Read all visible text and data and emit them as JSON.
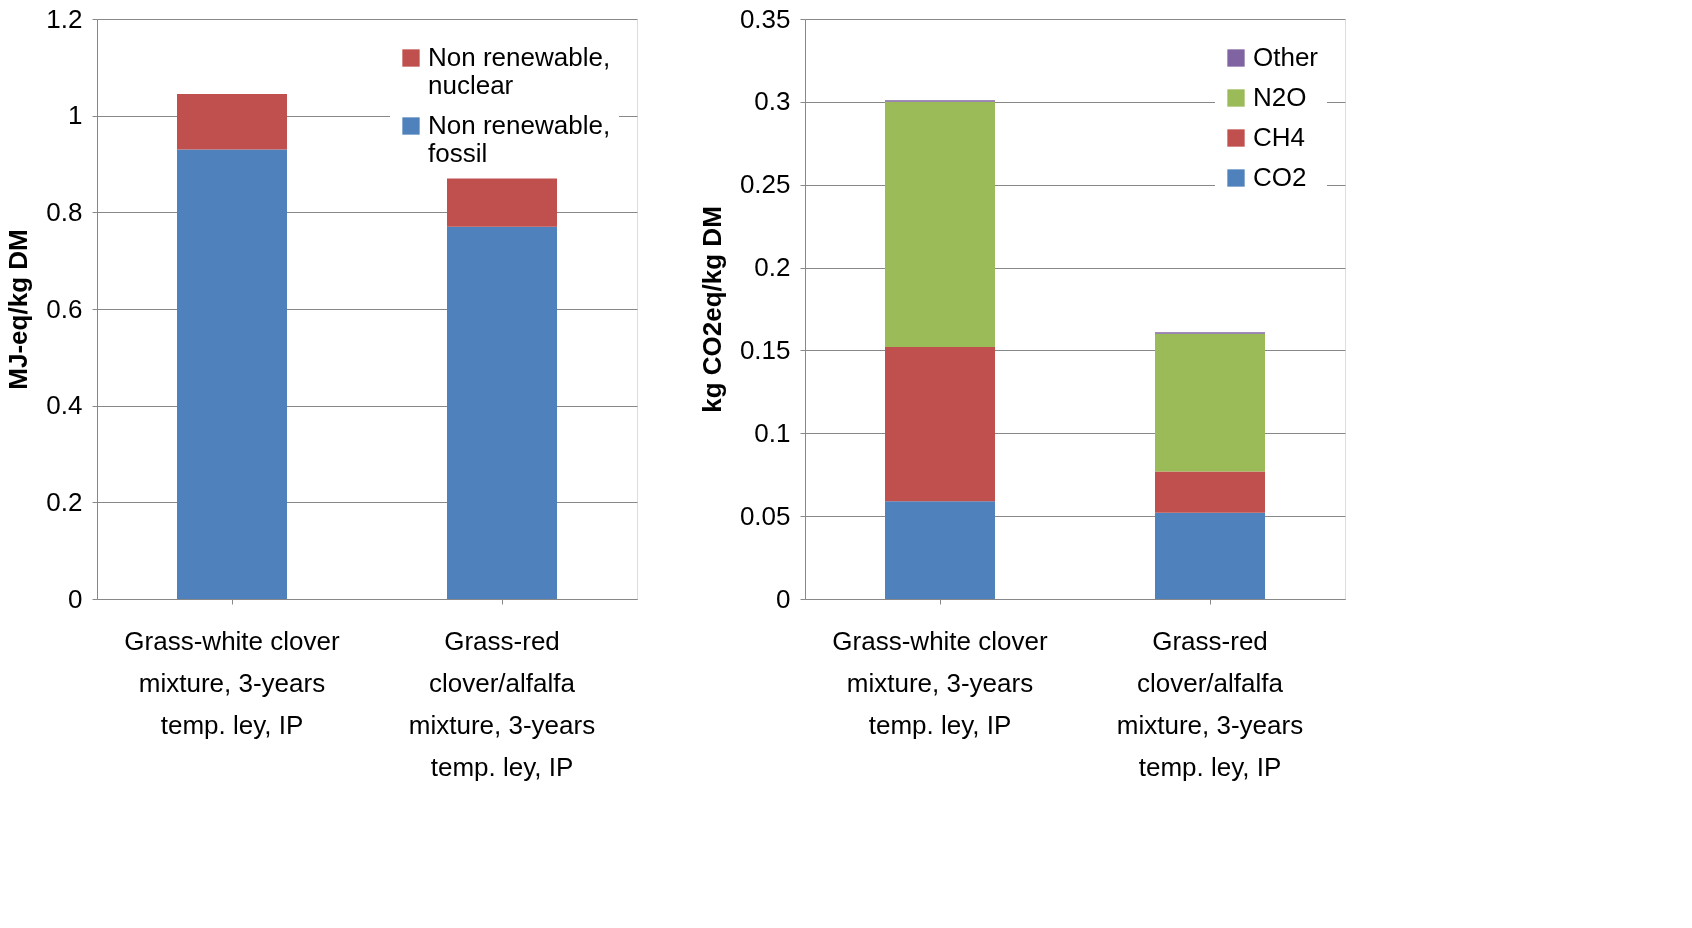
{
  "chart_data": [
    {
      "type": "bar",
      "stacked": true,
      "ylabel": "MJ-eq/kg DM",
      "categories": [
        "Grass-white clover mixture, 3-years temp. ley, IP",
        "Grass-red clover/alfalfa mixture, 3-years temp. ley, IP"
      ],
      "series": [
        {
          "name": "Non renewable, fossil",
          "color": "#4f81bd",
          "values": [
            0.93,
            0.77
          ]
        },
        {
          "name": "Non renewable, nuclear",
          "color": "#c0504d",
          "values": [
            0.115,
            0.1
          ]
        }
      ],
      "ylim": [
        0,
        1.2
      ],
      "yticks": [
        0,
        0.2,
        0.4,
        0.6,
        0.8,
        1,
        1.2
      ],
      "grid": "y",
      "legend": "top right"
    },
    {
      "type": "bar",
      "stacked": true,
      "ylabel": "kg CO2eq/kg DM",
      "categories": [
        "Grass-white clover mixture, 3-years temp. ley, IP",
        "Grass-red clover/alfalfa mixture, 3-years temp. ley, IP"
      ],
      "series": [
        {
          "name": "CO2",
          "color": "#4f81bd",
          "values": [
            0.059,
            0.052
          ]
        },
        {
          "name": "CH4",
          "color": "#c0504d",
          "values": [
            0.093,
            0.025
          ]
        },
        {
          "name": "N2O",
          "color": "#9bbb59",
          "values": [
            0.148,
            0.083
          ]
        },
        {
          "name": "Other",
          "color": "#8064a2",
          "values": [
            0.001,
            0.001
          ]
        }
      ],
      "ylim": [
        0,
        0.35
      ],
      "yticks": [
        0,
        0.05,
        0.1,
        0.15,
        0.2,
        0.25,
        0.3,
        0.35
      ],
      "grid": "y",
      "legend": "top right"
    }
  ]
}
